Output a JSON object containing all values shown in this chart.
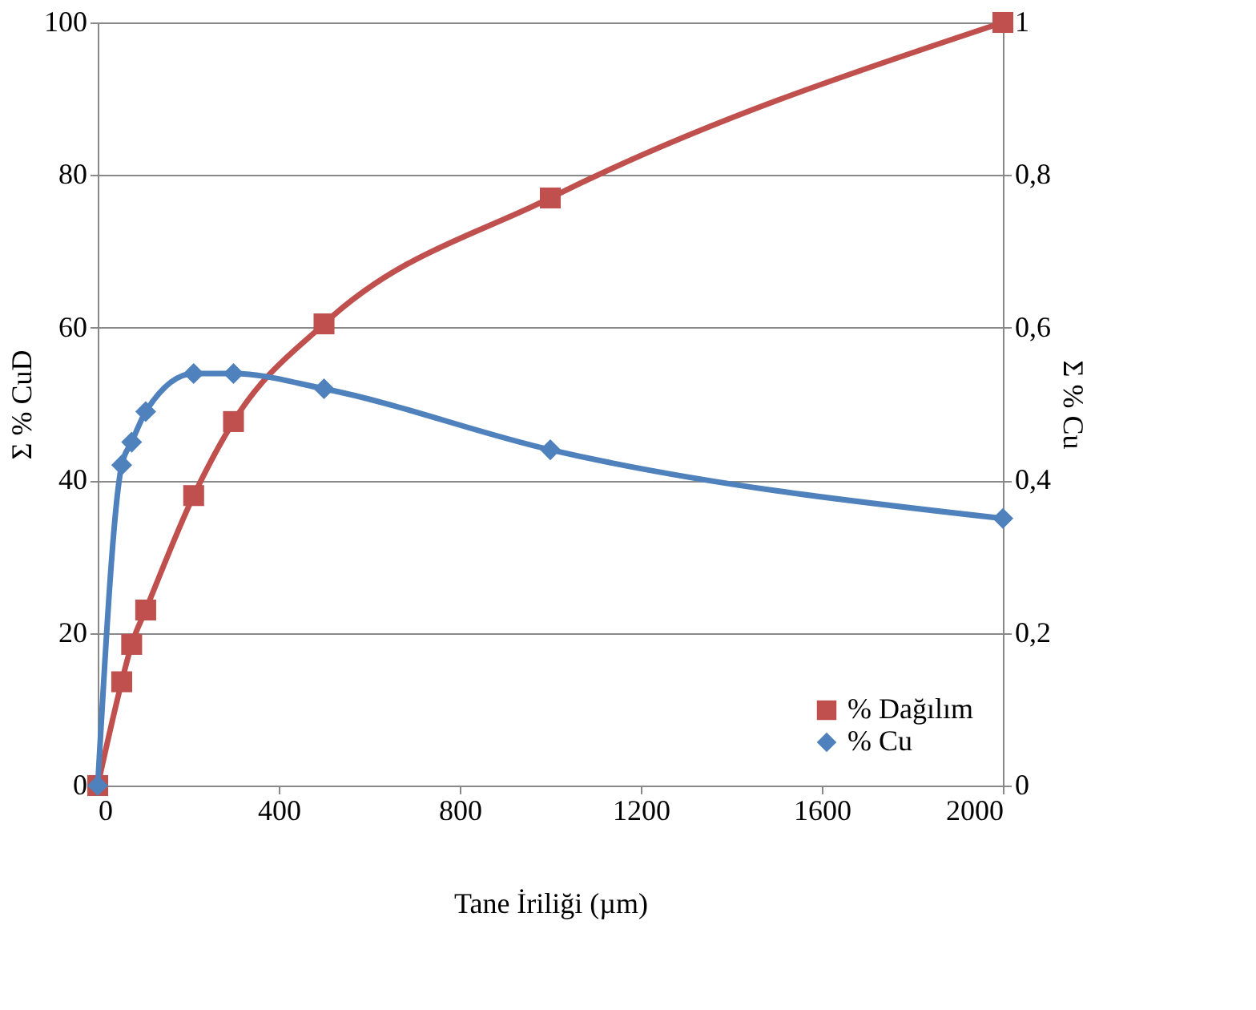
{
  "chart_data": {
    "type": "line",
    "xlabel": "Tane İriliği (µm)",
    "ylabel": "Σ % CuD",
    "y2label": "Σ % Cu",
    "xlim": [
      0,
      2000
    ],
    "xticks": [
      0,
      400,
      800,
      1200,
      1600,
      2000
    ],
    "ylim": [
      0,
      100
    ],
    "yticks": [
      0,
      20,
      40,
      60,
      80,
      100
    ],
    "y2lim": [
      0,
      1
    ],
    "y2ticks": [
      0,
      {
        "value": 0.2,
        "label": "0,2"
      },
      {
        "value": 0.4,
        "label": "0,4"
      },
      {
        "value": 0.6,
        "label": "0,6"
      },
      {
        "value": 0.8,
        "label": "0,8"
      },
      1
    ],
    "grid": "y",
    "legend": "bottom right",
    "line_style": "solid",
    "series": [
      {
        "name": "% Dağılım",
        "color": "#c0504d",
        "marker": "square",
        "x": [
          0,
          53,
          75,
          106,
          212,
          300,
          500,
          1000,
          2000
        ],
        "values": [
          0,
          13.6,
          18.5,
          23,
          38,
          47.7,
          60.5,
          77,
          100
        ]
      },
      {
        "name": "% Cu",
        "color": "#4f81bd",
        "marker": "diamond",
        "axis": "y2",
        "x": [
          0,
          53,
          75,
          106,
          212,
          300,
          500,
          1000,
          2000
        ],
        "values": [
          0,
          0.42,
          0.45,
          0.49,
          0.54,
          0.54,
          0.52,
          0.44,
          0.35
        ]
      }
    ]
  }
}
